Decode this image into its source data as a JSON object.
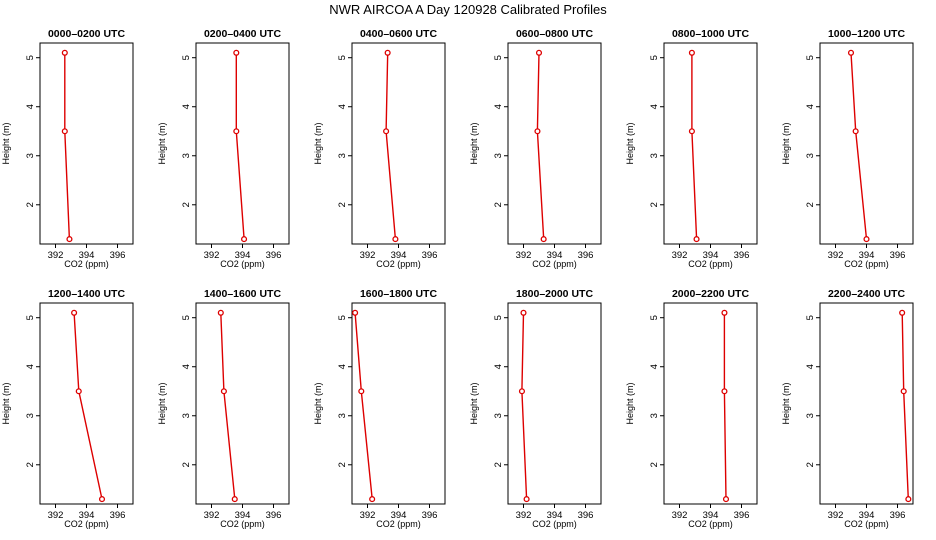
{
  "title": "NWR AIRCOA A  Day 120928  Calibrated Profiles",
  "colors": {
    "profile": "#dd0000",
    "axes": "#000000",
    "background": "#ffffff"
  },
  "chart_data": [
    {
      "type": "line",
      "title": "0000–0200 UTC",
      "xlabel": "CO2 (ppm)",
      "ylabel": "Height (m)",
      "xlim": [
        391,
        397
      ],
      "ylim": [
        1.2,
        5.3
      ],
      "xticks": [
        "392",
        "394",
        "396"
      ],
      "yticks": [
        "2",
        "3",
        "4",
        "5"
      ],
      "x": [
        392.6,
        392.6,
        392.9
      ],
      "y": [
        5.1,
        3.5,
        1.3
      ]
    },
    {
      "type": "line",
      "title": "0200–0400 UTC",
      "xlabel": "CO2 (ppm)",
      "ylabel": "Height (m)",
      "xlim": [
        391,
        397
      ],
      "ylim": [
        1.2,
        5.3
      ],
      "xticks": [
        "392",
        "394",
        "396"
      ],
      "yticks": [
        "2",
        "3",
        "4",
        "5"
      ],
      "x": [
        393.6,
        393.6,
        394.1
      ],
      "y": [
        5.1,
        3.5,
        1.3
      ]
    },
    {
      "type": "line",
      "title": "0400–0600 UTC",
      "xlabel": "CO2 (ppm)",
      "ylabel": "Height (m)",
      "xlim": [
        391,
        397
      ],
      "ylim": [
        1.2,
        5.3
      ],
      "xticks": [
        "392",
        "394",
        "396"
      ],
      "yticks": [
        "2",
        "3",
        "4",
        "5"
      ],
      "x": [
        393.3,
        393.2,
        393.8
      ],
      "y": [
        5.1,
        3.5,
        1.3
      ]
    },
    {
      "type": "line",
      "title": "0600–0800 UTC",
      "xlabel": "CO2 (ppm)",
      "ylabel": "Height (m)",
      "xlim": [
        391,
        397
      ],
      "ylim": [
        1.2,
        5.3
      ],
      "xticks": [
        "392",
        "394",
        "396"
      ],
      "yticks": [
        "2",
        "3",
        "4",
        "5"
      ],
      "x": [
        393.0,
        392.9,
        393.3
      ],
      "y": [
        5.1,
        3.5,
        1.3
      ]
    },
    {
      "type": "line",
      "title": "0800–1000 UTC",
      "xlabel": "CO2 (ppm)",
      "ylabel": "Height (m)",
      "xlim": [
        391,
        397
      ],
      "ylim": [
        1.2,
        5.3
      ],
      "xticks": [
        "392",
        "394",
        "396"
      ],
      "yticks": [
        "2",
        "3",
        "4",
        "5"
      ],
      "x": [
        392.8,
        392.8,
        393.1
      ],
      "y": [
        5.1,
        3.5,
        1.3
      ]
    },
    {
      "type": "line",
      "title": "1000–1200 UTC",
      "xlabel": "CO2 (ppm)",
      "ylabel": "Height (m)",
      "xlim": [
        391,
        397
      ],
      "ylim": [
        1.2,
        5.3
      ],
      "xticks": [
        "392",
        "394",
        "396"
      ],
      "yticks": [
        "2",
        "3",
        "4",
        "5"
      ],
      "x": [
        393.0,
        393.3,
        394.0
      ],
      "y": [
        5.1,
        3.5,
        1.3
      ]
    },
    {
      "type": "line",
      "title": "1200–1400 UTC",
      "xlabel": "CO2 (ppm)",
      "ylabel": "Height (m)",
      "xlim": [
        391,
        397
      ],
      "ylim": [
        1.2,
        5.3
      ],
      "xticks": [
        "392",
        "394",
        "396"
      ],
      "yticks": [
        "2",
        "3",
        "4",
        "5"
      ],
      "x": [
        393.2,
        393.5,
        395.0
      ],
      "y": [
        5.1,
        3.5,
        1.3
      ]
    },
    {
      "type": "line",
      "title": "1400–1600 UTC",
      "xlabel": "CO2 (ppm)",
      "ylabel": "Height (m)",
      "xlim": [
        391,
        397
      ],
      "ylim": [
        1.2,
        5.3
      ],
      "xticks": [
        "392",
        "394",
        "396"
      ],
      "yticks": [
        "2",
        "3",
        "4",
        "5"
      ],
      "x": [
        392.6,
        392.8,
        393.5
      ],
      "y": [
        5.1,
        3.5,
        1.3
      ]
    },
    {
      "type": "line",
      "title": "1600–1800 UTC",
      "xlabel": "CO2 (ppm)",
      "ylabel": "Height (m)",
      "xlim": [
        391,
        397
      ],
      "ylim": [
        1.2,
        5.3
      ],
      "xticks": [
        "392",
        "394",
        "396"
      ],
      "yticks": [
        "2",
        "3",
        "4",
        "5"
      ],
      "x": [
        391.2,
        391.6,
        392.3
      ],
      "y": [
        5.1,
        3.5,
        1.3
      ]
    },
    {
      "type": "line",
      "title": "1800–2000 UTC",
      "xlabel": "CO2 (ppm)",
      "ylabel": "Height (m)",
      "xlim": [
        391,
        397
      ],
      "ylim": [
        1.2,
        5.3
      ],
      "xticks": [
        "392",
        "394",
        "396"
      ],
      "yticks": [
        "2",
        "3",
        "4",
        "5"
      ],
      "x": [
        392.0,
        391.9,
        392.2
      ],
      "y": [
        5.1,
        3.5,
        1.3
      ]
    },
    {
      "type": "line",
      "title": "2000–2200 UTC",
      "xlabel": "CO2 (ppm)",
      "ylabel": "Height (m)",
      "xlim": [
        391,
        397
      ],
      "ylim": [
        1.2,
        5.3
      ],
      "xticks": [
        "392",
        "394",
        "396"
      ],
      "yticks": [
        "2",
        "3",
        "4",
        "5"
      ],
      "x": [
        394.9,
        394.9,
        395.0
      ],
      "y": [
        5.1,
        3.5,
        1.3
      ]
    },
    {
      "type": "line",
      "title": "2200–2400 UTC",
      "xlabel": "CO2 (ppm)",
      "ylabel": "Height (m)",
      "xlim": [
        391,
        397
      ],
      "ylim": [
        1.2,
        5.3
      ],
      "xticks": [
        "392",
        "394",
        "396"
      ],
      "yticks": [
        "2",
        "3",
        "4",
        "5"
      ],
      "x": [
        396.3,
        396.4,
        396.7
      ],
      "y": [
        5.1,
        3.5,
        1.3
      ]
    }
  ]
}
